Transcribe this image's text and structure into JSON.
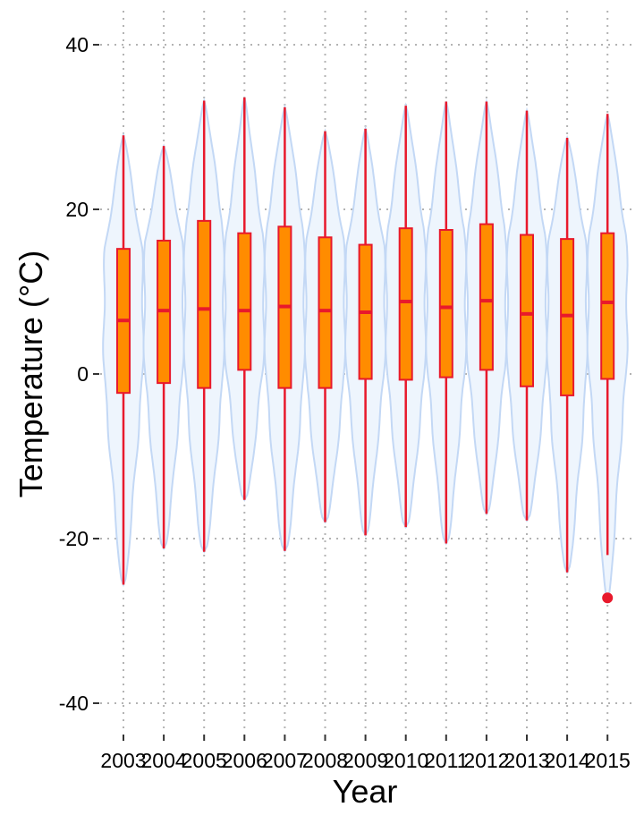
{
  "chart_data": {
    "type": "violin-box",
    "title": "",
    "xlabel": "Year",
    "ylabel": "Temperature (°C)",
    "ylim": [
      -44,
      44
    ],
    "yticks": [
      40,
      20,
      0,
      -20,
      -40
    ],
    "ytick_labels": [
      "40",
      "20",
      "0",
      "-20",
      "-40"
    ],
    "grid": true,
    "colors": {
      "violin_fill": "#eef5fd",
      "violin_stroke": "#c3d8f5",
      "box_fill": "#ff8c00",
      "box_stroke": "#e8192c",
      "outlier": "#e8192c"
    },
    "categories": [
      "2003",
      "2004",
      "2005",
      "2006",
      "2007",
      "2008",
      "2009",
      "2010",
      "2011",
      "2012",
      "2013",
      "2014",
      "2015"
    ],
    "boxes": [
      {
        "year": "2003",
        "min": -25.6,
        "q1": -2.3,
        "median": 6.5,
        "q3": 15.2,
        "max": 29.0,
        "outliers": []
      },
      {
        "year": "2004",
        "min": -21.2,
        "q1": -1.1,
        "median": 7.7,
        "q3": 16.2,
        "max": 27.7,
        "outliers": []
      },
      {
        "year": "2005",
        "min": -21.6,
        "q1": -1.7,
        "median": 7.9,
        "q3": 18.6,
        "max": 33.2,
        "outliers": []
      },
      {
        "year": "2006",
        "min": -15.3,
        "q1": 0.5,
        "median": 7.7,
        "q3": 17.1,
        "max": 33.6,
        "outliers": []
      },
      {
        "year": "2007",
        "min": -21.5,
        "q1": -1.7,
        "median": 8.2,
        "q3": 17.9,
        "max": 32.4,
        "outliers": []
      },
      {
        "year": "2008",
        "min": -18.0,
        "q1": -1.7,
        "median": 7.7,
        "q3": 16.6,
        "max": 29.5,
        "outliers": []
      },
      {
        "year": "2009",
        "min": -19.6,
        "q1": -0.6,
        "median": 7.5,
        "q3": 15.7,
        "max": 29.8,
        "outliers": []
      },
      {
        "year": "2010",
        "min": -18.6,
        "q1": -0.7,
        "median": 8.8,
        "q3": 17.7,
        "max": 32.6,
        "outliers": []
      },
      {
        "year": "2011",
        "min": -20.6,
        "q1": -0.4,
        "median": 8.1,
        "q3": 17.5,
        "max": 33.1,
        "outliers": []
      },
      {
        "year": "2012",
        "min": -17.0,
        "q1": 0.5,
        "median": 8.9,
        "q3": 18.2,
        "max": 33.1,
        "outliers": []
      },
      {
        "year": "2013",
        "min": -17.8,
        "q1": -1.5,
        "median": 7.3,
        "q3": 16.9,
        "max": 32.0,
        "outliers": []
      },
      {
        "year": "2014",
        "min": -24.1,
        "q1": -2.6,
        "median": 7.1,
        "q3": 16.4,
        "max": 28.7,
        "outliers": []
      },
      {
        "year": "2015",
        "min": -22.0,
        "q1": -0.6,
        "median": 8.7,
        "q3": 17.1,
        "max": 31.6,
        "outliers": [
          -27.2
        ]
      }
    ]
  }
}
